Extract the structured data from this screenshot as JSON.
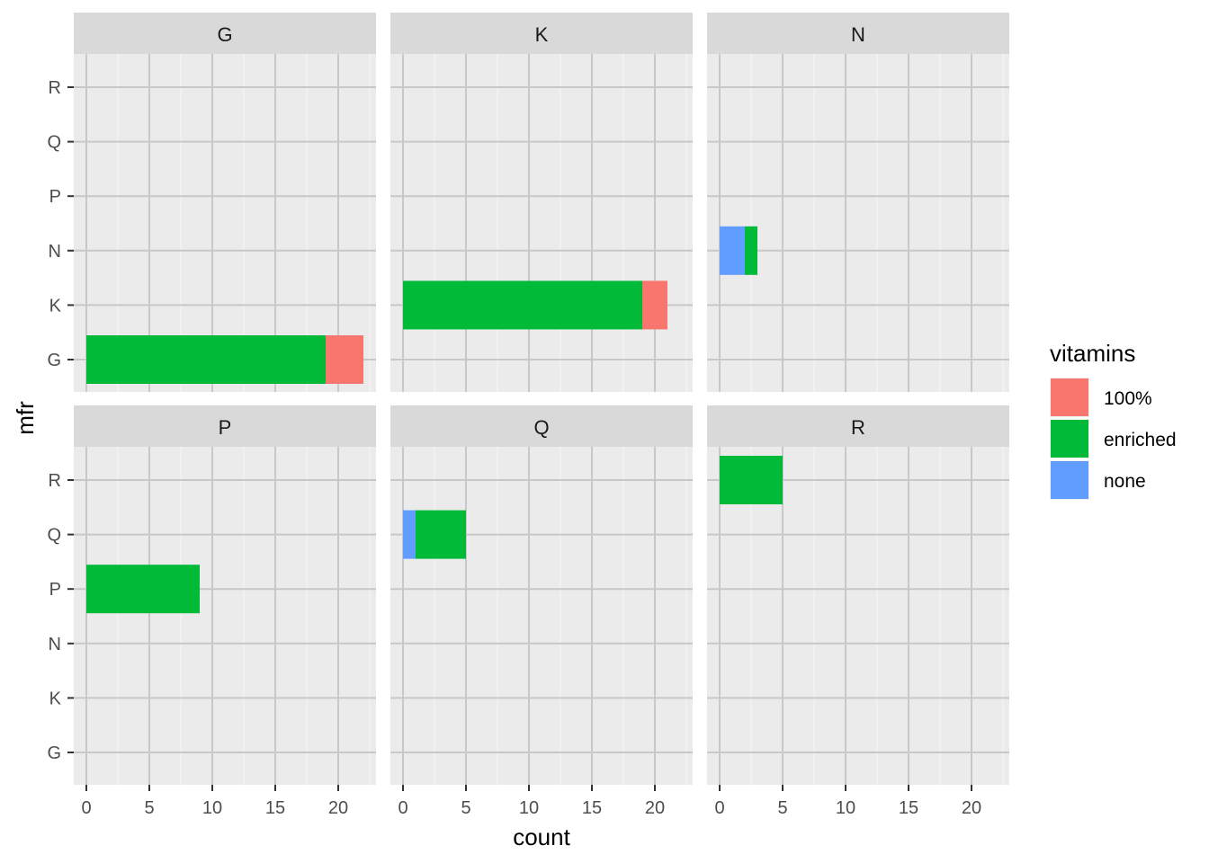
{
  "chart_data": {
    "type": "bar",
    "orientation": "horizontal",
    "stacked": true,
    "facet_variable": "mfr",
    "facet_layout": "3 columns x 2 rows",
    "xlabel": "count",
    "ylabel": "mfr",
    "xlim": [
      0,
      22.8
    ],
    "x_ticks": [
      0,
      5,
      10,
      15,
      20
    ],
    "categories": [
      "G",
      "K",
      "N",
      "P",
      "Q",
      "R"
    ],
    "grid": true,
    "legend": {
      "title": "vitamins",
      "position": "right",
      "entries": [
        {
          "label": "100%",
          "color": "#F8766D"
        },
        {
          "label": "enriched",
          "color": "#00BA38"
        },
        {
          "label": "none",
          "color": "#619CFF"
        }
      ]
    },
    "stack_order": [
      "none",
      "enriched",
      "100%"
    ],
    "panels": [
      {
        "label": "G",
        "bars": [
          {
            "category": "G",
            "none": 0,
            "enriched": 19,
            "100%": 3
          }
        ]
      },
      {
        "label": "K",
        "bars": [
          {
            "category": "K",
            "none": 0,
            "enriched": 19,
            "100%": 2
          }
        ]
      },
      {
        "label": "N",
        "bars": [
          {
            "category": "N",
            "none": 2,
            "enriched": 1,
            "100%": 0
          }
        ]
      },
      {
        "label": "P",
        "bars": [
          {
            "category": "P",
            "none": 0,
            "enriched": 9,
            "100%": 0
          }
        ]
      },
      {
        "label": "Q",
        "bars": [
          {
            "category": "Q",
            "none": 1,
            "enriched": 4,
            "100%": 0
          }
        ]
      },
      {
        "label": "R",
        "bars": [
          {
            "category": "R",
            "none": 0,
            "enriched": 5,
            "100%": 0
          }
        ]
      }
    ]
  }
}
